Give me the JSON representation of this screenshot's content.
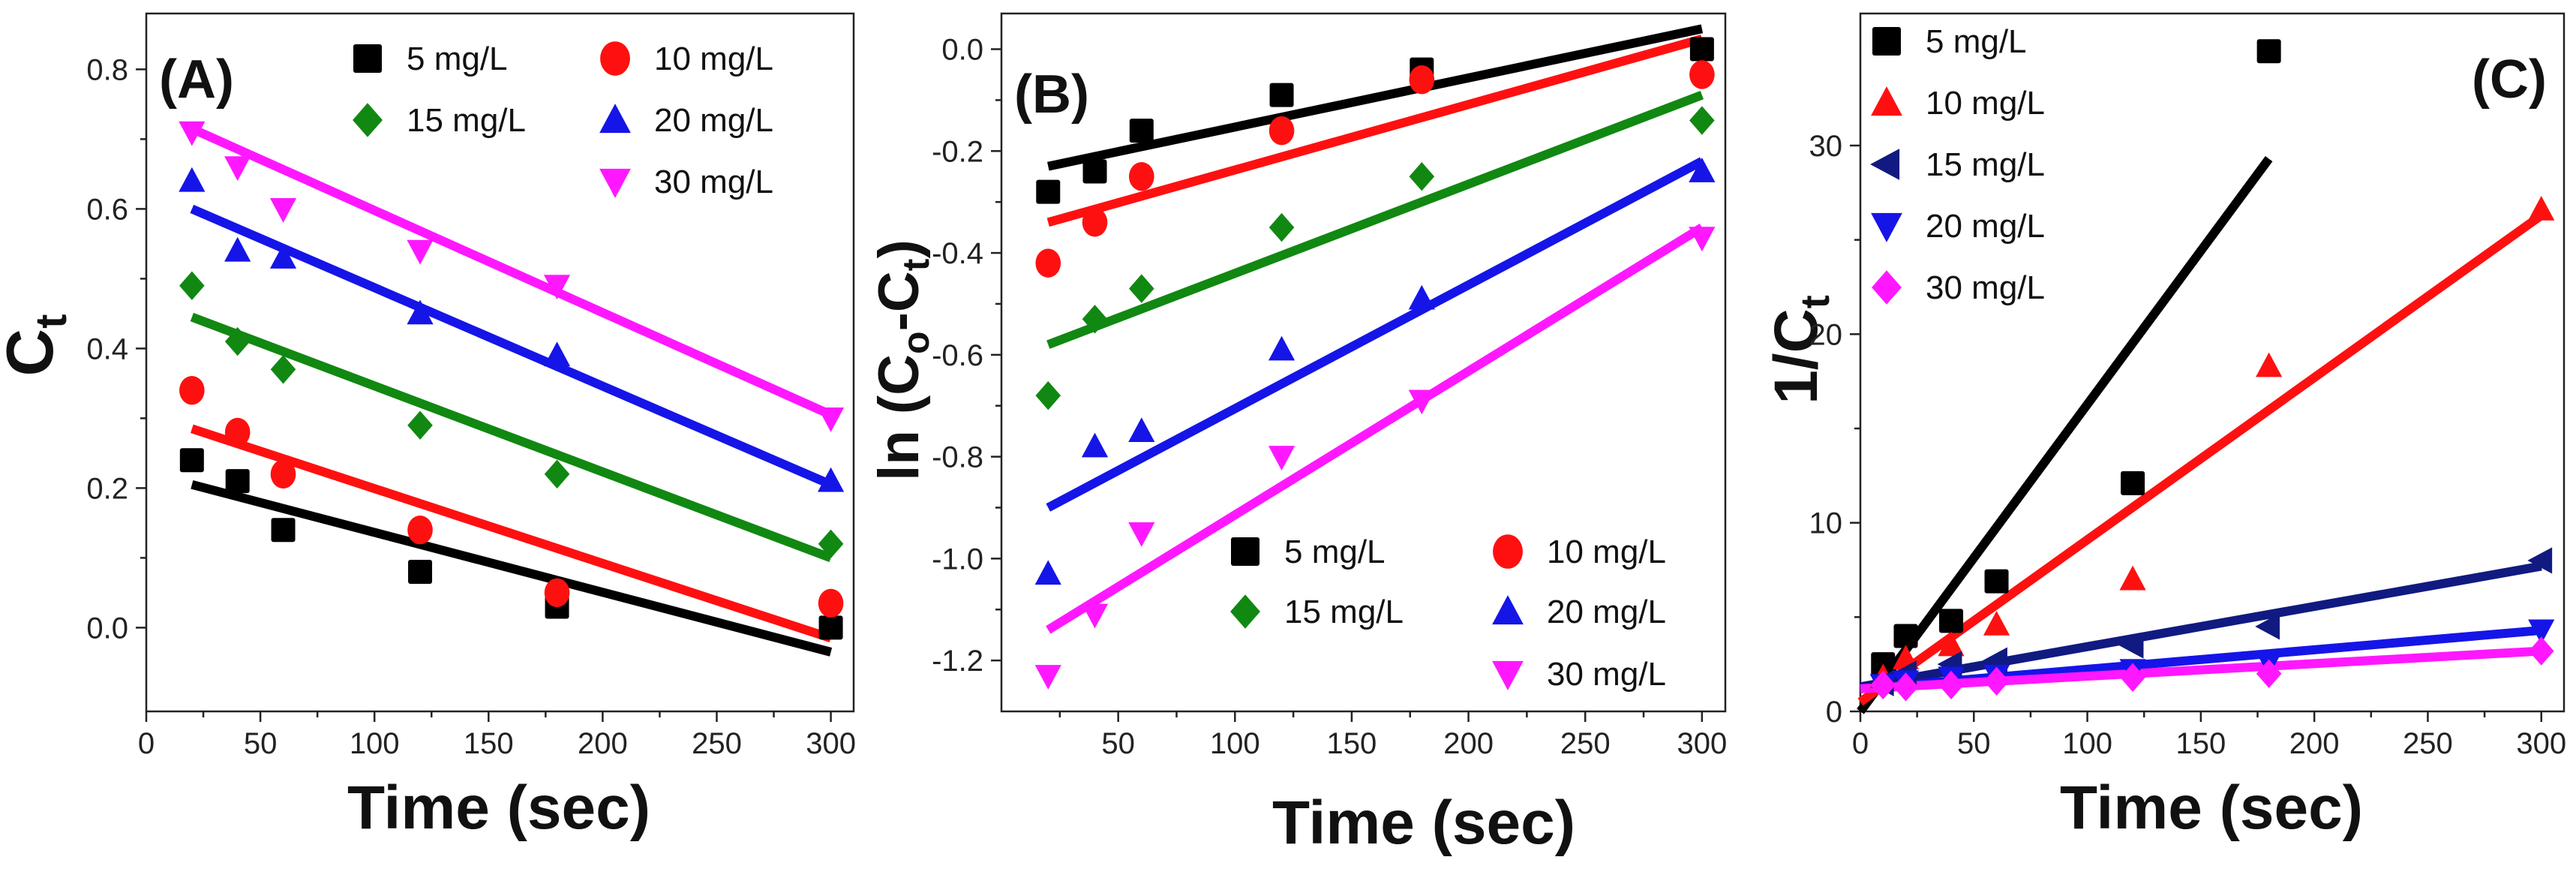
{
  "figure": {
    "x_title": "Time (sec)"
  },
  "colors": {
    "5 mg/L": "#000000",
    "10 mg/L": "#ff1010",
    "15 mg/L": "#118811",
    "20 mg/L": "#1515e8",
    "30 mg/L": "#ff18ff",
    "15 mg/L (C)": "#101a80"
  },
  "chart_data": [
    {
      "panel": "(A)",
      "type": "scatter",
      "xlabel": "Time (sec)",
      "ylabel": "Ct",
      "xlim": [
        0,
        310
      ],
      "ylim": [
        -0.12,
        0.88
      ],
      "xticks": [
        0,
        50,
        100,
        150,
        200,
        250,
        300
      ],
      "yticks": [
        0.0,
        0.2,
        0.4,
        0.6,
        0.8
      ],
      "ytick_labels": [
        "0.0",
        "0.2",
        "0.4",
        "0.6",
        "0.8"
      ],
      "legend_position": "top-right",
      "series": [
        {
          "name": "5 mg/L",
          "marker": "square",
          "x": [
            20,
            40,
            60,
            120,
            180,
            300
          ],
          "y": [
            0.24,
            0.21,
            0.14,
            0.08,
            0.03,
            0.0
          ],
          "fit": [
            [
              20,
              0.205
            ],
            [
              300,
              -0.035
            ]
          ]
        },
        {
          "name": "10 mg/L",
          "marker": "circle",
          "x": [
            20,
            40,
            60,
            120,
            180,
            300
          ],
          "y": [
            0.34,
            0.28,
            0.22,
            0.14,
            0.05,
            0.035
          ],
          "fit": [
            [
              20,
              0.285
            ],
            [
              300,
              -0.015
            ]
          ]
        },
        {
          "name": "15 mg/L",
          "marker": "diamond",
          "x": [
            20,
            40,
            60,
            120,
            180,
            300
          ],
          "y": [
            0.49,
            0.41,
            0.37,
            0.29,
            0.22,
            0.12
          ],
          "fit": [
            [
              20,
              0.445
            ],
            [
              300,
              0.1
            ]
          ]
        },
        {
          "name": "20 mg/L",
          "marker": "triangle-up",
          "x": [
            20,
            40,
            60,
            120,
            180,
            300
          ],
          "y": [
            0.64,
            0.54,
            0.53,
            0.45,
            0.39,
            0.21
          ],
          "fit": [
            [
              20,
              0.6
            ],
            [
              300,
              0.205
            ]
          ]
        },
        {
          "name": "30 mg/L",
          "marker": "triangle-down",
          "x": [
            20,
            40,
            60,
            120,
            180,
            300
          ],
          "y": [
            0.71,
            0.66,
            0.6,
            0.54,
            0.49,
            0.3
          ],
          "fit": [
            [
              20,
              0.715
            ],
            [
              300,
              0.305
            ]
          ]
        }
      ]
    },
    {
      "panel": "(B)",
      "type": "scatter",
      "xlabel": "Time (sec)",
      "ylabel": "ln (Co-Ct)",
      "xlim": [
        0,
        310
      ],
      "ylim": [
        -1.3,
        0.07
      ],
      "xticks": [
        50,
        100,
        150,
        200,
        250,
        300
      ],
      "yticks": [
        0.0,
        -0.2,
        -0.4,
        -0.6,
        -0.8,
        -1.0,
        -1.2
      ],
      "ytick_labels": [
        "0.0",
        "-0.2",
        "-0.4",
        "-0.6",
        "-0.8",
        "-1.0",
        "-1.2"
      ],
      "legend_position": "bottom-right",
      "series": [
        {
          "name": "5 mg/L",
          "marker": "square",
          "x": [
            20,
            40,
            60,
            120,
            180,
            300
          ],
          "y": [
            -0.28,
            -0.24,
            -0.16,
            -0.09,
            -0.04,
            0.0
          ],
          "fit": [
            [
              20,
              -0.23
            ],
            [
              300,
              0.04
            ]
          ]
        },
        {
          "name": "10 mg/L",
          "marker": "circle",
          "x": [
            20,
            40,
            60,
            120,
            180,
            300
          ],
          "y": [
            -0.42,
            -0.34,
            -0.25,
            -0.16,
            -0.06,
            -0.05
          ],
          "fit": [
            [
              20,
              -0.34
            ],
            [
              300,
              0.02
            ]
          ]
        },
        {
          "name": "15 mg/L",
          "marker": "diamond",
          "x": [
            20,
            40,
            60,
            120,
            180,
            300
          ],
          "y": [
            -0.68,
            -0.53,
            -0.47,
            -0.35,
            -0.25,
            -0.14
          ],
          "fit": [
            [
              20,
              -0.58
            ],
            [
              300,
              -0.09
            ]
          ]
        },
        {
          "name": "20 mg/L",
          "marker": "triangle-up",
          "x": [
            20,
            40,
            60,
            120,
            180,
            300
          ],
          "y": [
            -1.03,
            -0.78,
            -0.75,
            -0.59,
            -0.49,
            -0.24
          ],
          "fit": [
            [
              20,
              -0.9
            ],
            [
              300,
              -0.22
            ]
          ]
        },
        {
          "name": "30 mg/L",
          "marker": "triangle-down",
          "x": [
            20,
            40,
            60,
            120,
            180,
            300
          ],
          "y": [
            -1.23,
            -1.11,
            -0.95,
            -0.8,
            -0.69,
            -0.37
          ],
          "fit": [
            [
              20,
              -1.14
            ],
            [
              300,
              -0.35
            ]
          ]
        }
      ]
    },
    {
      "panel": "(C)",
      "type": "scatter",
      "xlabel": "Time (sec)",
      "ylabel": "1/Ct",
      "xlim": [
        0,
        310
      ],
      "ylim": [
        0,
        37
      ],
      "xticks": [
        0,
        50,
        100,
        150,
        200,
        250,
        300
      ],
      "yticks": [
        0,
        10,
        20,
        30
      ],
      "ytick_labels": [
        "0",
        "10",
        "20",
        "30"
      ],
      "legend_position": "top-left",
      "series": [
        {
          "name": "5 mg/L",
          "marker": "square",
          "x": [
            10,
            20,
            40,
            60,
            120,
            180
          ],
          "y": [
            2.5,
            4.0,
            4.8,
            6.9,
            12.1,
            35.0
          ],
          "fit": [
            [
              0,
              0.0
            ],
            [
              180,
              29.3
            ]
          ]
        },
        {
          "name": "10 mg/L",
          "marker": "triangle-up",
          "x": [
            10,
            20,
            40,
            60,
            120,
            180,
            300
          ],
          "y": [
            1.8,
            2.8,
            3.5,
            4.6,
            7.0,
            18.3,
            26.6
          ],
          "fit": [
            [
              0,
              0.5
            ],
            [
              300,
              26.3
            ]
          ]
        },
        {
          "name": "15 mg/L",
          "marker": "triangle-left",
          "x": [
            10,
            20,
            40,
            60,
            120,
            180,
            300
          ],
          "y": [
            1.5,
            2.0,
            2.5,
            2.7,
            3.5,
            4.5,
            8.0
          ],
          "fit": [
            [
              0,
              1.3
            ],
            [
              300,
              7.7
            ]
          ]
        },
        {
          "name": "20 mg/L",
          "marker": "triangle-down",
          "x": [
            10,
            20,
            40,
            60,
            120,
            180,
            300
          ],
          "y": [
            1.4,
            1.6,
            1.8,
            1.9,
            2.2,
            2.6,
            4.3
          ],
          "fit": [
            [
              0,
              1.2
            ],
            [
              300,
              4.3
            ]
          ]
        },
        {
          "name": "30 mg/L",
          "marker": "diamond",
          "x": [
            10,
            20,
            40,
            60,
            120,
            180,
            300
          ],
          "y": [
            1.4,
            1.3,
            1.4,
            1.6,
            1.8,
            2.0,
            3.2
          ],
          "fit": [
            [
              0,
              1.2
            ],
            [
              300,
              3.2
            ]
          ]
        }
      ]
    }
  ]
}
